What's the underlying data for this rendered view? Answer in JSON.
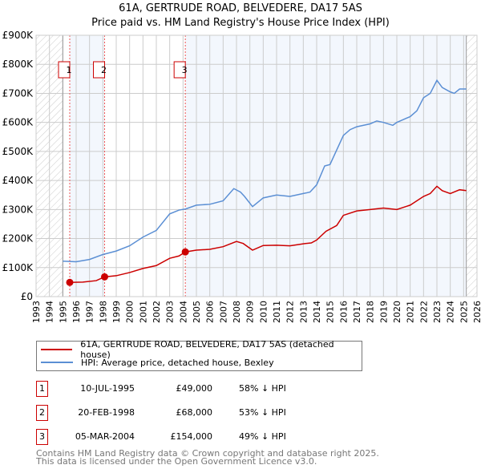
{
  "chart_data": {
    "type": "line",
    "title": "61A, GERTRUDE ROAD, BELVEDERE, DA17 5AS",
    "subtitle": "Price paid vs. HM Land Registry's House Price Index (HPI)",
    "xlim": [
      1993,
      2026
    ],
    "ylim": [
      0,
      900000
    ],
    "x_ticks": [
      "1993",
      "1994",
      "1995",
      "1996",
      "1997",
      "1998",
      "1999",
      "2000",
      "2001",
      "2002",
      "2003",
      "2004",
      "2005",
      "2006",
      "2007",
      "2008",
      "2009",
      "2010",
      "2011",
      "2012",
      "2013",
      "2014",
      "2015",
      "2016",
      "2017",
      "2018",
      "2019",
      "2020",
      "2021",
      "2022",
      "2023",
      "2024",
      "2025",
      "2026"
    ],
    "y_ticks": [
      {
        "v": 0,
        "label": "£0"
      },
      {
        "v": 100000,
        "label": "£100K"
      },
      {
        "v": 200000,
        "label": "£200K"
      },
      {
        "v": 300000,
        "label": "£300K"
      },
      {
        "v": 400000,
        "label": "£400K"
      },
      {
        "v": 500000,
        "label": "£500K"
      },
      {
        "v": 600000,
        "label": "£600K"
      },
      {
        "v": 700000,
        "label": "£700K"
      },
      {
        "v": 800000,
        "label": "£800K"
      },
      {
        "v": 900000,
        "label": "£900K"
      }
    ],
    "grid": true,
    "data_range": [
      1995,
      2025.2
    ],
    "series": [
      {
        "name": "61A, GERTRUDE ROAD, BELVEDERE, DA17 5AS (detached house)",
        "color": "#cc0000",
        "points": [
          [
            1995.52,
            49000
          ],
          [
            1996.5,
            50000
          ],
          [
            1997.5,
            55000
          ],
          [
            1998.13,
            68000
          ],
          [
            1999,
            72000
          ],
          [
            2000,
            83000
          ],
          [
            2001,
            97000
          ],
          [
            2002,
            107000
          ],
          [
            2003,
            132000
          ],
          [
            2003.7,
            140000
          ],
          [
            2004.17,
            154000
          ],
          [
            2005,
            160000
          ],
          [
            2006,
            163000
          ],
          [
            2007,
            172000
          ],
          [
            2008,
            190000
          ],
          [
            2008.5,
            183000
          ],
          [
            2009.2,
            160000
          ],
          [
            2010,
            176000
          ],
          [
            2011,
            177000
          ],
          [
            2012,
            175000
          ],
          [
            2013,
            182000
          ],
          [
            2013.6,
            185000
          ],
          [
            2014,
            195000
          ],
          [
            2014.7,
            225000
          ],
          [
            2015.5,
            245000
          ],
          [
            2016,
            280000
          ],
          [
            2017,
            295000
          ],
          [
            2018,
            300000
          ],
          [
            2019,
            305000
          ],
          [
            2020,
            300000
          ],
          [
            2021,
            315000
          ],
          [
            2022,
            345000
          ],
          [
            2022.5,
            355000
          ],
          [
            2023,
            380000
          ],
          [
            2023.4,
            365000
          ],
          [
            2024,
            355000
          ],
          [
            2024.7,
            368000
          ],
          [
            2025.2,
            365000
          ]
        ]
      },
      {
        "name": "HPI: Average price, detached house, Bexley",
        "color": "#5b8fd4",
        "points": [
          [
            1995,
            122000
          ],
          [
            1996,
            120000
          ],
          [
            1997,
            128000
          ],
          [
            1998,
            145000
          ],
          [
            1999,
            157000
          ],
          [
            2000,
            175000
          ],
          [
            2001,
            205000
          ],
          [
            2002,
            228000
          ],
          [
            2003,
            285000
          ],
          [
            2003.7,
            298000
          ],
          [
            2004.2,
            302000
          ],
          [
            2005,
            315000
          ],
          [
            2006,
            318000
          ],
          [
            2007,
            330000
          ],
          [
            2007.8,
            372000
          ],
          [
            2008.3,
            360000
          ],
          [
            2008.6,
            345000
          ],
          [
            2009.2,
            310000
          ],
          [
            2010,
            340000
          ],
          [
            2011,
            350000
          ],
          [
            2012,
            345000
          ],
          [
            2013,
            355000
          ],
          [
            2013.5,
            360000
          ],
          [
            2014,
            385000
          ],
          [
            2014.6,
            450000
          ],
          [
            2015,
            455000
          ],
          [
            2015.5,
            505000
          ],
          [
            2016,
            555000
          ],
          [
            2016.5,
            575000
          ],
          [
            2017,
            585000
          ],
          [
            2018,
            595000
          ],
          [
            2018.5,
            605000
          ],
          [
            2019,
            600000
          ],
          [
            2019.7,
            590000
          ],
          [
            2020,
            600000
          ],
          [
            2021,
            620000
          ],
          [
            2021.5,
            640000
          ],
          [
            2022,
            685000
          ],
          [
            2022.5,
            700000
          ],
          [
            2023,
            745000
          ],
          [
            2023.4,
            720000
          ],
          [
            2024,
            705000
          ],
          [
            2024.3,
            700000
          ],
          [
            2024.7,
            715000
          ],
          [
            2025.2,
            715000
          ]
        ]
      }
    ],
    "sales": [
      {
        "n": "1",
        "x": 1995.52,
        "price": 49000,
        "date": "10-JUL-1995",
        "price_label": "£49,000",
        "delta": "58% ↓ HPI"
      },
      {
        "n": "2",
        "x": 1998.13,
        "price": 68000,
        "date": "20-FEB-1998",
        "price_label": "£68,000",
        "delta": "53% ↓ HPI"
      },
      {
        "n": "3",
        "x": 2004.17,
        "price": 154000,
        "date": "05-MAR-2004",
        "price_label": "£154,000",
        "delta": "49% ↓ HPI"
      }
    ]
  },
  "footer": {
    "line1": "Contains HM Land Registry data © Crown copyright and database right 2025.",
    "line2": "This data is licensed under the Open Government Licence v3.0."
  }
}
